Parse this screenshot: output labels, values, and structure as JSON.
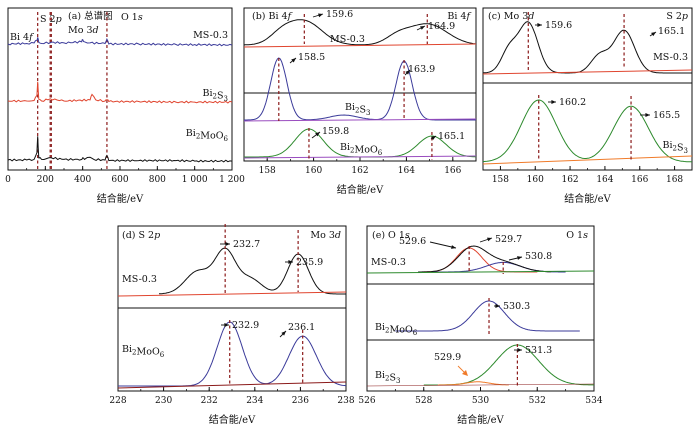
{
  "chart_data": [
    {
      "panel": "a",
      "type": "line",
      "title": "(a) 总谱图",
      "xlabel": "结合能/eV",
      "xlim": [
        0,
        1200
      ],
      "xticks": [
        "0",
        "200",
        "400",
        "600",
        "800",
        "1 000",
        "1 200"
      ],
      "peak_labels": [
        "Bi 4f",
        "S 2p",
        "Mo 3d",
        "O 1s"
      ],
      "peak_positions": [
        159,
        226,
        232,
        530
      ],
      "series": [
        {
          "name": "MS-0.3",
          "color": "#3b3b9a",
          "x": [
            0,
            100,
            140,
            155,
            159,
            165,
            180,
            230,
            300,
            395,
            400,
            410,
            440,
            520,
            530,
            540,
            700,
            900,
            1000,
            1200
          ],
          "y": [
            0.88,
            0.89,
            0.9,
            0.95,
            1.0,
            0.91,
            0.89,
            0.91,
            0.9,
            0.92,
            0.96,
            0.92,
            0.9,
            0.89,
            0.97,
            0.88,
            0.88,
            0.87,
            0.87,
            0.86
          ]
        },
        {
          "name": "Bi2S3",
          "color": "#e0452f",
          "x": [
            0,
            100,
            140,
            155,
            159,
            165,
            180,
            226,
            300,
            440,
            450,
            470,
            520,
            530,
            540,
            700,
            900,
            1000,
            1200
          ],
          "y": [
            0.5,
            0.5,
            0.51,
            0.6,
            0.85,
            0.53,
            0.5,
            0.54,
            0.5,
            0.52,
            0.62,
            0.52,
            0.5,
            0.52,
            0.49,
            0.49,
            0.48,
            0.48,
            0.48
          ]
        },
        {
          "name": "Bi2MoO6",
          "color": "#111111",
          "x": [
            0,
            100,
            140,
            155,
            159,
            165,
            180,
            232,
            300,
            395,
            400,
            410,
            440,
            460,
            520,
            530,
            540,
            700,
            900,
            1000,
            1200
          ],
          "y": [
            0.12,
            0.12,
            0.13,
            0.25,
            0.55,
            0.16,
            0.13,
            0.16,
            0.13,
            0.13,
            0.16,
            0.13,
            0.17,
            0.13,
            0.12,
            0.2,
            0.11,
            0.11,
            0.11,
            0.1,
            0.1
          ]
        }
      ]
    },
    {
      "panel": "b",
      "type": "line",
      "title": "(b) Bi 4f",
      "label_right": "Bi 4f",
      "xlabel": "结合能/eV",
      "xlim": [
        157,
        167
      ],
      "xticks": [
        "158",
        "160",
        "162",
        "164",
        "166"
      ],
      "series": [
        {
          "name": "MS-0.3",
          "peaks": [
            159.6,
            164.9
          ],
          "color": "#111111"
        },
        {
          "name": "Bi2S3",
          "peaks": [
            158.5,
            163.9
          ],
          "color": "#3b3b9a"
        },
        {
          "name": "Bi2MoO6",
          "peaks": [
            159.8,
            165.1
          ],
          "color": "#2d8a2d"
        }
      ],
      "annotations": [
        "159.6",
        "164.9",
        "158.5",
        "163.9",
        "159.8",
        "165.1"
      ]
    },
    {
      "panel": "c",
      "type": "line",
      "title": "(c) Mo 3d",
      "label_right": "S 2p",
      "xlabel": "结合能/eV",
      "xlim": [
        157,
        169
      ],
      "xticks": [
        "158",
        "160",
        "162",
        "164",
        "166",
        "168"
      ],
      "series": [
        {
          "name": "MS-0.3",
          "peaks": [
            159.6,
            165.1
          ],
          "color": "#111111"
        },
        {
          "name": "Bi2S3",
          "peaks": [
            160.2,
            165.5
          ],
          "color": "#2d8a2d"
        }
      ],
      "annotations": [
        "159.6",
        "165.1",
        "160.2",
        "165.5"
      ]
    },
    {
      "panel": "d",
      "type": "line",
      "title": "(d) S 2p",
      "label_right": "Mo 3d",
      "xlabel": "结合能/eV",
      "xlim": [
        228,
        238
      ],
      "xticks": [
        "228",
        "230",
        "232",
        "234",
        "236",
        "238"
      ],
      "series": [
        {
          "name": "MS-0.3",
          "peaks": [
            232.7,
            235.9
          ],
          "color": "#111111"
        },
        {
          "name": "Bi2MoO6",
          "peaks": [
            232.9,
            236.1
          ],
          "color": "#3b3b9a"
        }
      ],
      "annotations": [
        "232.7",
        "235.9",
        "232.9",
        "236.1"
      ]
    },
    {
      "panel": "e",
      "type": "line",
      "title": "(e) O 1s",
      "label_right": "O 1s",
      "xlabel": "结合能/eV",
      "xlim": [
        526,
        534
      ],
      "xticks": [
        "526",
        "528",
        "530",
        "532",
        "534"
      ],
      "series": [
        {
          "name": "MS-0.3",
          "peaks": [
            529.6,
            529.7,
            530.8
          ],
          "color": "#111111"
        },
        {
          "name": "Bi2MoO6",
          "peaks": [
            530.3
          ],
          "color": "#3b3b9a"
        },
        {
          "name": "Bi2S3",
          "peaks": [
            529.9,
            531.3
          ],
          "color": "#2d8a2d"
        }
      ],
      "annotations": [
        "529.6",
        "529.7",
        "530.8",
        "530.3",
        "529.9",
        "531.3"
      ]
    }
  ]
}
